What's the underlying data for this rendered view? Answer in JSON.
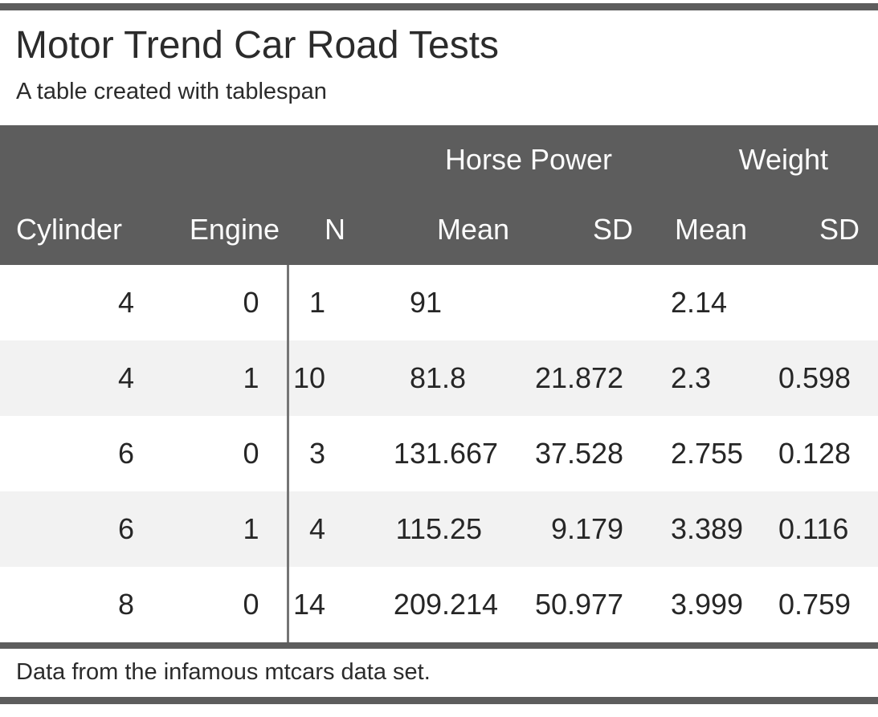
{
  "title": "Motor Trend Car Road Tests",
  "subtitle": "A table created with tablespan",
  "footnote": "Data from the infamous mtcars data set.",
  "colors": {
    "rule_and_header_bg": "#5d5d5d",
    "header_text": "#fcfcfc",
    "body_text": "#262626",
    "stripe_row_bg": "#f2f2f2",
    "column_divider": "#757575"
  },
  "chart_data": {
    "type": "table",
    "title": "Motor Trend Car Road Tests",
    "subtitle": "A table created with tablespan",
    "footnote": "Data from the infamous mtcars data set.",
    "spanners": [
      {
        "label": "Horse Power",
        "spans_columns": [
          "Mean",
          "SD"
        ]
      },
      {
        "label": "Weight",
        "spans_columns": [
          "Mean",
          "SD"
        ]
      }
    ],
    "columns": [
      "Cylinder",
      "Engine",
      "N",
      "Mean",
      "SD",
      "Mean",
      "SD"
    ],
    "rows": [
      [
        "4",
        "0",
        "1",
        "91",
        "",
        "2.14",
        ""
      ],
      [
        "4",
        "1",
        "10",
        "81.8",
        "21.872",
        "2.3",
        "0.598"
      ],
      [
        "6",
        "0",
        "3",
        "131.667",
        "37.528",
        "2.755",
        "0.128"
      ],
      [
        "6",
        "1",
        "4",
        "115.25",
        "9.179",
        "3.389",
        "0.116"
      ],
      [
        "8",
        "0",
        "14",
        "209.214",
        "50.977",
        "3.999",
        "0.759"
      ]
    ],
    "layout_notes": "striped rows, vertical divider after Engine column, thick gray rules top and bottom"
  }
}
